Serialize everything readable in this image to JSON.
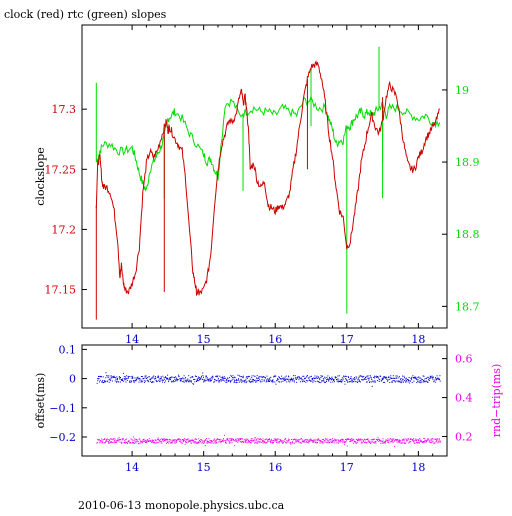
{
  "title": "clock (red) rtc (green) slopes",
  "footer": "2010-06-13 monopole.physics.ubc.ca",
  "colors": {
    "red": "#cc0000",
    "green": "#00dd00",
    "blue": "#0000cc",
    "magenta": "#ee00ee",
    "axis": "#000000"
  },
  "chart_data": [
    {
      "type": "line",
      "title": "clock (red) rtc (green) slopes",
      "xlim": [
        13.3,
        18.4
      ],
      "x_ticks": [
        "14",
        "15",
        "16",
        "17",
        "18"
      ],
      "x_tick_values": [
        14,
        15,
        16,
        17,
        18
      ],
      "left_axis": {
        "label": "clockslope",
        "ylim": [
          17.118,
          17.37
        ],
        "tick_values": [
          17.15,
          17.2,
          17.25,
          17.3
        ],
        "tick_labels": [
          "17.15",
          "17.2",
          "17.25",
          "17.3"
        ]
      },
      "right_axis": {
        "label": "",
        "ylim": [
          18.67,
          19.09
        ],
        "tick_values": [
          18.7,
          18.8,
          18.9,
          19.0
        ],
        "tick_labels": [
          "18.7",
          "18.8",
          "18.9",
          "19"
        ]
      },
      "series": [
        {
          "name": "clock",
          "axis": "left",
          "x": [
            13.5,
            13.52,
            13.55,
            13.58,
            13.6,
            13.65,
            13.7,
            13.75,
            13.8,
            13.83,
            13.85,
            13.88,
            13.9,
            13.95,
            14.0,
            14.05,
            14.1,
            14.15,
            14.2,
            14.25,
            14.3,
            14.35,
            14.4,
            14.45,
            14.48,
            14.5,
            14.52,
            14.55,
            14.6,
            14.65,
            14.7,
            14.75,
            14.8,
            14.85,
            14.88,
            14.9,
            14.93,
            14.95,
            15.0,
            15.05,
            15.1,
            15.15,
            15.2,
            15.25,
            15.3,
            15.35,
            15.4,
            15.45,
            15.5,
            15.53,
            15.55,
            15.58,
            15.6,
            15.63,
            15.65,
            15.7,
            15.75,
            15.8,
            15.85,
            15.9,
            15.95,
            16.0,
            16.05,
            16.1,
            16.15,
            16.2,
            16.25,
            16.3,
            16.35,
            16.4,
            16.45,
            16.5,
            16.55,
            16.6,
            16.65,
            16.7,
            16.75,
            16.8,
            16.85,
            16.9,
            16.95,
            17.0,
            17.05,
            17.1,
            17.15,
            17.2,
            17.25,
            17.3,
            17.35,
            17.4,
            17.45,
            17.5,
            17.55,
            17.6,
            17.65,
            17.7,
            17.75,
            17.8,
            17.85,
            17.9,
            17.95,
            18.0,
            18.05,
            18.1,
            18.15,
            18.2,
            18.25,
            18.3
          ],
          "y": [
            17.22,
            17.255,
            17.26,
            17.24,
            17.235,
            17.235,
            17.23,
            17.215,
            17.19,
            17.16,
            17.17,
            17.155,
            17.15,
            17.148,
            17.155,
            17.165,
            17.185,
            17.23,
            17.255,
            17.265,
            17.26,
            17.265,
            17.275,
            17.285,
            17.29,
            17.282,
            17.285,
            17.282,
            17.275,
            17.27,
            17.265,
            17.24,
            17.2,
            17.165,
            17.155,
            17.148,
            17.147,
            17.147,
            17.15,
            17.16,
            17.18,
            17.22,
            17.25,
            17.27,
            17.28,
            17.29,
            17.29,
            17.295,
            17.31,
            17.315,
            17.305,
            17.31,
            17.3,
            17.28,
            17.25,
            17.255,
            17.24,
            17.235,
            17.24,
            17.22,
            17.218,
            17.215,
            17.22,
            17.218,
            17.222,
            17.23,
            17.25,
            17.268,
            17.29,
            17.31,
            17.325,
            17.335,
            17.337,
            17.337,
            17.325,
            17.305,
            17.28,
            17.26,
            17.235,
            17.215,
            17.21,
            17.185,
            17.19,
            17.21,
            17.23,
            17.255,
            17.27,
            17.285,
            17.295,
            17.285,
            17.28,
            17.29,
            17.31,
            17.32,
            17.315,
            17.31,
            17.29,
            17.27,
            17.255,
            17.25,
            17.25,
            17.26,
            17.265,
            17.275,
            17.28,
            17.285,
            17.29,
            17.3
          ],
          "spikes": [
            [
              13.5,
              17.125
            ],
            [
              14.45,
              17.148
            ],
            [
              16.45,
              17.25
            ],
            [
              17.5,
              17.31
            ]
          ]
        },
        {
          "name": "rtc",
          "axis": "right",
          "x": [
            13.5,
            13.55,
            13.6,
            13.7,
            13.8,
            13.9,
            14.0,
            14.05,
            14.1,
            14.15,
            14.2,
            14.25,
            14.3,
            14.35,
            14.4,
            14.45,
            14.5,
            14.55,
            14.6,
            14.7,
            14.8,
            14.9,
            15.0,
            15.05,
            15.1,
            15.15,
            15.2,
            15.3,
            15.4,
            15.5,
            15.6,
            15.7,
            15.8,
            15.9,
            16.0,
            16.1,
            16.2,
            16.3,
            16.4,
            16.5,
            16.6,
            16.7,
            16.75,
            16.8,
            16.85,
            16.9,
            16.95,
            17.0,
            17.05,
            17.1,
            17.15,
            17.2,
            17.25,
            17.3,
            17.35,
            17.4,
            17.45,
            17.5,
            17.55,
            17.6,
            17.7,
            17.8,
            17.9,
            18.0,
            18.1,
            18.2,
            18.3
          ],
          "y": [
            18.9,
            18.915,
            18.925,
            18.925,
            18.915,
            18.915,
            18.92,
            18.905,
            18.885,
            18.87,
            18.86,
            18.89,
            18.9,
            18.91,
            18.92,
            18.935,
            18.96,
            18.965,
            18.97,
            18.96,
            18.94,
            18.925,
            18.91,
            18.9,
            18.905,
            18.89,
            18.88,
            18.98,
            18.985,
            18.965,
            18.97,
            18.975,
            18.97,
            18.97,
            18.965,
            18.975,
            18.97,
            18.965,
            18.985,
            18.985,
            18.975,
            18.975,
            18.96,
            18.945,
            18.925,
            18.93,
            18.93,
            18.95,
            18.95,
            18.96,
            18.965,
            18.97,
            18.965,
            18.97,
            18.965,
            18.97,
            18.975,
            18.98,
            18.965,
            18.975,
            18.975,
            18.97,
            18.965,
            18.96,
            18.965,
            18.955,
            18.955
          ],
          "spikes": [
            [
              13.5,
              19.01
            ],
            [
              14.45,
              18.85
            ],
            [
              15.55,
              18.86
            ],
            [
              16.5,
              18.95
            ],
            [
              16.5,
              19.03
            ],
            [
              17.0,
              18.69
            ],
            [
              17.45,
              19.06
            ],
            [
              17.5,
              18.9
            ],
            [
              17.5,
              18.85
            ]
          ]
        }
      ]
    },
    {
      "type": "scatter",
      "xlim": [
        13.3,
        18.4
      ],
      "x_ticks": [
        "14",
        "15",
        "16",
        "17",
        "18"
      ],
      "x_tick_values": [
        14,
        15,
        16,
        17,
        18
      ],
      "left_axis": {
        "label": "offset(ms)",
        "ylim": [
          -0.265,
          0.115
        ],
        "tick_values": [
          -0.2,
          -0.1,
          0,
          0.1
        ],
        "tick_labels": [
          "−0.2",
          "−0.1",
          "0",
          "0.1"
        ]
      },
      "right_axis": {
        "label": "rnd−trip(ms)",
        "ylim": [
          0.1,
          0.67
        ],
        "tick_values": [
          0.2,
          0.4,
          0.6
        ],
        "tick_labels": [
          "0.2",
          "0.4",
          "0.6"
        ]
      },
      "series": [
        {
          "name": "offset",
          "axis": "left",
          "x_range": [
            13.5,
            18.3
          ],
          "y_center": 0.0,
          "y_spread": 0.012
        },
        {
          "name": "round-trip",
          "axis": "right",
          "x_range": [
            13.5,
            18.3
          ],
          "y_center": 0.18,
          "y_spread": 0.012
        }
      ]
    }
  ]
}
